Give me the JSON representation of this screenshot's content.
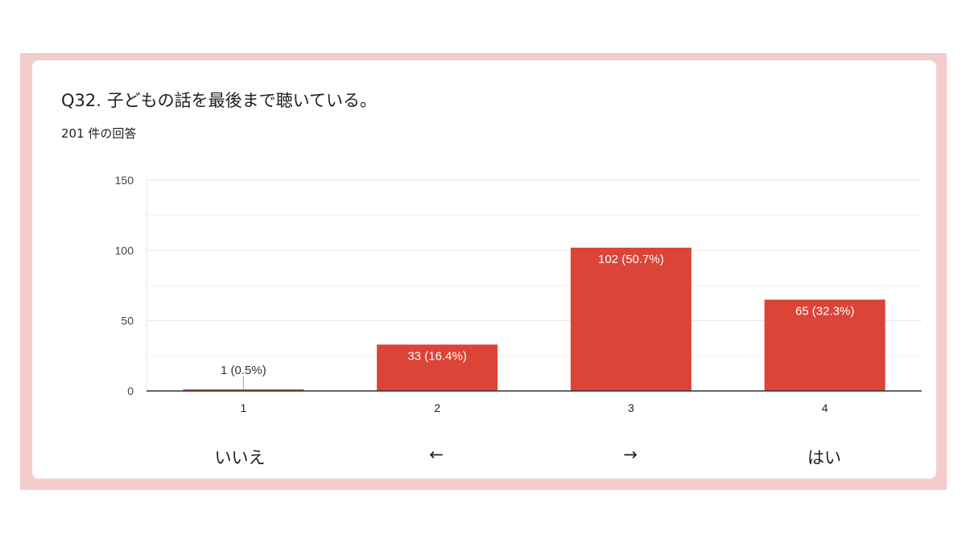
{
  "question": {
    "title": "Q32.  子どもの話を最後まで聴いている。",
    "response_count": "201 件の回答"
  },
  "colors": {
    "frame": "#f4cccc",
    "bar": "#db4437",
    "grid": "#e6e6e6",
    "axis": "#333333"
  },
  "scale_labels": [
    "いいえ",
    "←",
    "→",
    "はい"
  ],
  "chart_data": {
    "type": "bar",
    "categories": [
      "1",
      "2",
      "3",
      "4"
    ],
    "values": [
      1,
      33,
      102,
      65
    ],
    "data_labels": [
      "1 (0.5%)",
      "33 (16.4%)",
      "102 (50.7%)",
      "65 (32.3%)"
    ],
    "ylim": [
      0,
      150
    ],
    "yticks": [
      0,
      50,
      100,
      150
    ],
    "minor_gridlines": [
      25,
      75,
      125
    ],
    "grid": true,
    "legend": "none"
  }
}
